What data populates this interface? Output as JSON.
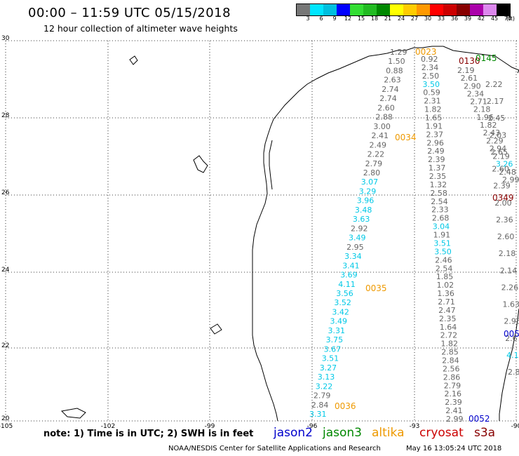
{
  "header": {
    "title": "00:00 – 11:59 UTC 05/15/2018",
    "subtitle": "12 hour collection of altimeter wave heights"
  },
  "scale": {
    "unit": "(ft)",
    "bins": [
      {
        "label": "3",
        "color": "#777777"
      },
      {
        "label": "6",
        "color": "#00e5ff"
      },
      {
        "label": "9",
        "color": "#00bfdf"
      },
      {
        "label": "12",
        "color": "#0000ff"
      },
      {
        "label": "15",
        "color": "#33dd33"
      },
      {
        "label": "18",
        "color": "#22bb22"
      },
      {
        "label": "21",
        "color": "#008800"
      },
      {
        "label": "24",
        "color": "#ffff00"
      },
      {
        "label": "27",
        "color": "#ffcc00"
      },
      {
        "label": "30",
        "color": "#ff9900"
      },
      {
        "label": "33",
        "color": "#ff0000"
      },
      {
        "label": "36",
        "color": "#cc0000"
      },
      {
        "label": "39",
        "color": "#880000"
      },
      {
        "label": "42",
        "color": "#aa00aa"
      },
      {
        "label": "45",
        "color": "#dd88ee"
      },
      {
        "label": "70",
        "color": "#000000"
      }
    ]
  },
  "axes": {
    "lat_labels": [
      "30",
      "28",
      "26",
      "24",
      "22",
      "20"
    ],
    "lon_labels": [
      "-105",
      "-102",
      "-99",
      "-96",
      "-93",
      "-90"
    ]
  },
  "colors": {
    "swh_gray": "#666666",
    "swh_cyan": "#00c8e6",
    "jason2": "#0000cc",
    "jason3": "#008800",
    "altika": "#ee9900",
    "cryosat": "#cc0000",
    "s3a": "#880000"
  },
  "tracks": {
    "altika_west": {
      "time_labels": [
        "0023",
        "0034",
        "0035",
        "0036"
      ],
      "values": [
        {
          "v": "1.29",
          "c": "gray"
        },
        {
          "v": "1.50",
          "c": "gray"
        },
        {
          "v": "0.88",
          "c": "gray"
        },
        {
          "v": "2.63",
          "c": "gray"
        },
        {
          "v": "2.74",
          "c": "gray"
        },
        {
          "v": "2.74",
          "c": "gray"
        },
        {
          "v": "2.60",
          "c": "gray"
        },
        {
          "v": "2.88",
          "c": "gray"
        },
        {
          "v": "3.00",
          "c": "gray"
        },
        {
          "v": "2.41",
          "c": "gray"
        },
        {
          "v": "2.49",
          "c": "gray"
        },
        {
          "v": "2.22",
          "c": "gray"
        },
        {
          "v": "2.79",
          "c": "gray"
        },
        {
          "v": "2.80",
          "c": "gray"
        },
        {
          "v": "3.07",
          "c": "cyan"
        },
        {
          "v": "3.29",
          "c": "cyan"
        },
        {
          "v": "3.96",
          "c": "cyan"
        },
        {
          "v": "3.48",
          "c": "cyan"
        },
        {
          "v": "3.63",
          "c": "cyan"
        },
        {
          "v": "2.92",
          "c": "gray"
        },
        {
          "v": "3.49",
          "c": "cyan"
        },
        {
          "v": "2.95",
          "c": "gray"
        },
        {
          "v": "3.34",
          "c": "cyan"
        },
        {
          "v": "3.41",
          "c": "cyan"
        },
        {
          "v": "3.69",
          "c": "cyan"
        },
        {
          "v": "4.11",
          "c": "cyan"
        },
        {
          "v": "3.56",
          "c": "cyan"
        },
        {
          "v": "3.52",
          "c": "cyan"
        },
        {
          "v": "3.42",
          "c": "cyan"
        },
        {
          "v": "3.49",
          "c": "cyan"
        },
        {
          "v": "3.31",
          "c": "cyan"
        },
        {
          "v": "3.75",
          "c": "cyan"
        },
        {
          "v": "3.67",
          "c": "cyan"
        },
        {
          "v": "3.51",
          "c": "cyan"
        },
        {
          "v": "3.27",
          "c": "cyan"
        },
        {
          "v": "3.13",
          "c": "cyan"
        },
        {
          "v": "3.22",
          "c": "cyan"
        },
        {
          "v": "2.79",
          "c": "gray"
        },
        {
          "v": "2.84",
          "c": "gray"
        },
        {
          "v": "3.31",
          "c": "cyan"
        }
      ]
    },
    "track_middle": {
      "values": [
        {
          "v": "0.92",
          "c": "gray"
        },
        {
          "v": "2.34",
          "c": "gray"
        },
        {
          "v": "2.50",
          "c": "gray"
        },
        {
          "v": "3.50",
          "c": "cyan"
        },
        {
          "v": "0.59",
          "c": "gray"
        },
        {
          "v": "2.31",
          "c": "gray"
        },
        {
          "v": "1.82",
          "c": "gray"
        },
        {
          "v": "1.65",
          "c": "gray"
        },
        {
          "v": "1.91",
          "c": "gray"
        },
        {
          "v": "2.37",
          "c": "gray"
        },
        {
          "v": "2.96",
          "c": "gray"
        },
        {
          "v": "2.49",
          "c": "gray"
        },
        {
          "v": "2.39",
          "c": "gray"
        },
        {
          "v": "1.37",
          "c": "gray"
        },
        {
          "v": "2.35",
          "c": "gray"
        },
        {
          "v": "1.32",
          "c": "gray"
        },
        {
          "v": "2.58",
          "c": "gray"
        },
        {
          "v": "2.54",
          "c": "gray"
        },
        {
          "v": "2.33",
          "c": "gray"
        },
        {
          "v": "2.68",
          "c": "gray"
        },
        {
          "v": "3.04",
          "c": "cyan"
        },
        {
          "v": "1.91",
          "c": "gray"
        },
        {
          "v": "3.51",
          "c": "cyan"
        },
        {
          "v": "3.50",
          "c": "cyan"
        },
        {
          "v": "2.46",
          "c": "gray"
        },
        {
          "v": "2.54",
          "c": "gray"
        },
        {
          "v": "1.85",
          "c": "gray"
        },
        {
          "v": "1.02",
          "c": "gray"
        },
        {
          "v": "1.36",
          "c": "gray"
        },
        {
          "v": "2.71",
          "c": "gray"
        },
        {
          "v": "2.47",
          "c": "gray"
        },
        {
          "v": "2.35",
          "c": "gray"
        },
        {
          "v": "1.64",
          "c": "gray"
        },
        {
          "v": "2.72",
          "c": "gray"
        },
        {
          "v": "1.82",
          "c": "gray"
        },
        {
          "v": "2.85",
          "c": "gray"
        },
        {
          "v": "2.84",
          "c": "gray"
        },
        {
          "v": "2.56",
          "c": "gray"
        },
        {
          "v": "2.86",
          "c": "gray"
        },
        {
          "v": "2.79",
          "c": "gray"
        },
        {
          "v": "2.16",
          "c": "gray"
        },
        {
          "v": "2.39",
          "c": "gray"
        },
        {
          "v": "2.41",
          "c": "gray"
        },
        {
          "v": "2.99",
          "c": "gray"
        }
      ]
    },
    "track_east": {
      "values": [
        {
          "v": "2.19",
          "c": "gray"
        },
        {
          "v": "2.61",
          "c": "gray"
        },
        {
          "v": "2.90",
          "c": "gray"
        },
        {
          "v": "2.34",
          "c": "gray"
        },
        {
          "v": "2.71",
          "c": "gray"
        },
        {
          "v": "2.18",
          "c": "gray"
        },
        {
          "v": "1.96",
          "c": "gray"
        },
        {
          "v": "1.82",
          "c": "gray"
        },
        {
          "v": "2.43",
          "c": "gray"
        },
        {
          "v": "2.29",
          "c": "gray"
        },
        {
          "v": "2.94",
          "c": "gray"
        },
        {
          "v": "2.19",
          "c": "gray"
        },
        {
          "v": "3.26",
          "c": "cyan"
        },
        {
          "v": "2.48",
          "c": "gray"
        },
        {
          "v": "2.99",
          "c": "gray"
        }
      ]
    },
    "track_far_east": {
      "values": [
        {
          "v": "2.22",
          "c": "gray"
        },
        {
          "v": "2.17",
          "c": "gray"
        },
        {
          "v": "2.45",
          "c": "gray"
        },
        {
          "v": "2.03",
          "c": "gray"
        },
        {
          "v": "2.65",
          "c": "gray"
        },
        {
          "v": "2.60",
          "c": "gray"
        },
        {
          "v": "2.39",
          "c": "gray"
        },
        {
          "v": "2.00",
          "c": "gray"
        },
        {
          "v": "2.36",
          "c": "gray"
        },
        {
          "v": "2.60",
          "c": "gray"
        },
        {
          "v": "2.18",
          "c": "gray"
        },
        {
          "v": "2.14",
          "c": "gray"
        },
        {
          "v": "2.26",
          "c": "gray"
        },
        {
          "v": "1.63",
          "c": "gray"
        },
        {
          "v": "2.95",
          "c": "gray"
        },
        {
          "v": "2.67",
          "c": "gray"
        },
        {
          "v": "4.13",
          "c": "cyan"
        },
        {
          "v": "2.83",
          "c": "gray"
        }
      ]
    },
    "other_labels": [
      {
        "v": "0130",
        "c": "s3a"
      },
      {
        "v": "0145",
        "c": "jason3"
      },
      {
        "v": "0349",
        "c": "s3a"
      },
      {
        "v": "0052",
        "c": "jason2"
      },
      {
        "v": "005",
        "c": "jason2"
      }
    ]
  },
  "footer": {
    "note": "note: 1) Time is in UTC; 2) SWH is in feet",
    "legend": [
      {
        "name": "jason2",
        "color": "#0000cc"
      },
      {
        "name": "jason3",
        "color": "#008800"
      },
      {
        "name": "altika",
        "color": "#ee9900"
      },
      {
        "name": "cryosat",
        "color": "#cc0000"
      },
      {
        "name": "s3a",
        "color": "#880000"
      }
    ],
    "credits": "NOAA/NESDIS Center for Satellite Applications and Research",
    "timestamp": "May 16 13:05:24 UTC 2018"
  }
}
